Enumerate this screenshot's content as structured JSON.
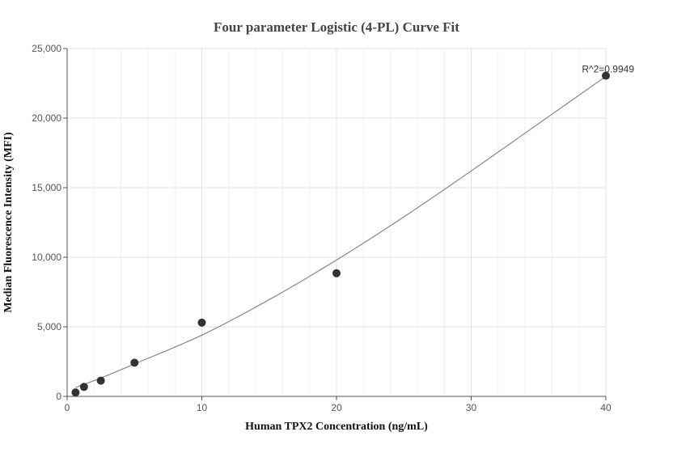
{
  "chart_data": {
    "type": "scatter",
    "title": "Four parameter Logistic (4-PL) Curve Fit",
    "xlabel": "Human TPX2 Concentration (ng/mL)",
    "ylabel": "Median Fluorescence Intensity (MFI)",
    "xlim": [
      0,
      40
    ],
    "ylim": [
      0,
      25000
    ],
    "x_ticks": [
      0,
      10,
      20,
      30,
      40
    ],
    "y_ticks": [
      0,
      5000,
      10000,
      15000,
      20000,
      25000
    ],
    "x_tick_labels": [
      "0",
      "10",
      "20",
      "30",
      "40"
    ],
    "y_tick_labels": [
      "0",
      "5,000",
      "10,000",
      "15,000",
      "20,000",
      "25,000"
    ],
    "grid": true,
    "series": [
      {
        "kind": "points",
        "x": [
          0.625,
          1.25,
          2.5,
          5,
          10,
          20,
          40
        ],
        "y": [
          280,
          680,
          1130,
          2420,
          5300,
          8850,
          23050
        ],
        "color": "#333333"
      },
      {
        "kind": "fit-curve",
        "x": [
          0.625,
          2.5,
          5,
          10,
          15,
          20,
          25,
          30,
          35,
          40
        ],
        "y": [
          640,
          1320,
          2330,
          4400,
          6950,
          9800,
          12900,
          16200,
          19600,
          23000
        ],
        "color": "#888888"
      }
    ],
    "annotations": [
      {
        "text": "R^2=0.9949",
        "x": 40,
        "y": 23050
      }
    ]
  }
}
